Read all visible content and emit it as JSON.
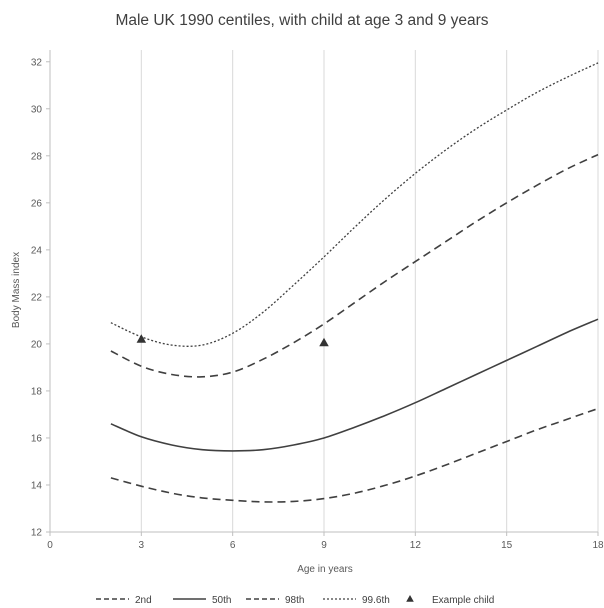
{
  "chart_data": {
    "type": "line",
    "title": "Male UK 1990 centiles, with child at age 3 and 9 years",
    "xlabel": "Age  in years",
    "ylabel": "Body Mass index",
    "xlim": [
      0,
      18
    ],
    "ylim": [
      12,
      32.5
    ],
    "xticks": [
      0,
      3,
      6,
      9,
      12,
      15,
      18
    ],
    "yticks": [
      12,
      14,
      16,
      18,
      20,
      22,
      24,
      26,
      28,
      30,
      32
    ],
    "grid": "vertical",
    "legend_position": "bottom",
    "series": [
      {
        "name": "2nd",
        "style": "dashed",
        "color": "#404040",
        "points": [
          [
            2,
            14.3
          ],
          [
            3,
            13.95
          ],
          [
            4,
            13.65
          ],
          [
            5,
            13.45
          ],
          [
            6,
            13.35
          ],
          [
            7,
            13.28
          ],
          [
            8,
            13.3
          ],
          [
            9,
            13.42
          ],
          [
            10,
            13.65
          ],
          [
            11,
            13.98
          ],
          [
            12,
            14.38
          ],
          [
            13,
            14.85
          ],
          [
            14,
            15.35
          ],
          [
            15,
            15.85
          ],
          [
            16,
            16.35
          ],
          [
            17,
            16.8
          ],
          [
            18,
            17.25
          ]
        ]
      },
      {
        "name": "50th",
        "style": "solid",
        "color": "#404040",
        "points": [
          [
            2,
            16.6
          ],
          [
            3,
            16.05
          ],
          [
            4,
            15.7
          ],
          [
            5,
            15.5
          ],
          [
            6,
            15.45
          ],
          [
            7,
            15.5
          ],
          [
            8,
            15.7
          ],
          [
            9,
            16.0
          ],
          [
            10,
            16.45
          ],
          [
            11,
            16.95
          ],
          [
            12,
            17.5
          ],
          [
            13,
            18.1
          ],
          [
            14,
            18.7
          ],
          [
            15,
            19.3
          ],
          [
            16,
            19.9
          ],
          [
            17,
            20.5
          ],
          [
            18,
            21.05
          ]
        ]
      },
      {
        "name": "98th",
        "style": "dashed",
        "color": "#404040",
        "points": [
          [
            2,
            19.7
          ],
          [
            3,
            19.05
          ],
          [
            4,
            18.7
          ],
          [
            5,
            18.6
          ],
          [
            6,
            18.8
          ],
          [
            7,
            19.35
          ],
          [
            8,
            20.05
          ],
          [
            9,
            20.85
          ],
          [
            10,
            21.75
          ],
          [
            11,
            22.65
          ],
          [
            12,
            23.5
          ],
          [
            13,
            24.35
          ],
          [
            14,
            25.2
          ],
          [
            15,
            26.0
          ],
          [
            16,
            26.75
          ],
          [
            17,
            27.45
          ],
          [
            18,
            28.05
          ]
        ]
      },
      {
        "name": "99.6th",
        "style": "dotted",
        "color": "#404040",
        "points": [
          [
            2,
            20.9
          ],
          [
            3,
            20.3
          ],
          [
            4,
            19.95
          ],
          [
            5,
            19.95
          ],
          [
            6,
            20.45
          ],
          [
            7,
            21.35
          ],
          [
            8,
            22.5
          ],
          [
            9,
            23.7
          ],
          [
            10,
            24.95
          ],
          [
            11,
            26.15
          ],
          [
            12,
            27.25
          ],
          [
            13,
            28.25
          ],
          [
            14,
            29.15
          ],
          [
            15,
            29.95
          ],
          [
            16,
            30.7
          ],
          [
            17,
            31.35
          ],
          [
            18,
            31.95
          ]
        ]
      },
      {
        "name": "Example child",
        "style": "marker",
        "color": "#333333",
        "points": [
          [
            3,
            20.2
          ],
          [
            9,
            20.05
          ]
        ]
      }
    ]
  }
}
